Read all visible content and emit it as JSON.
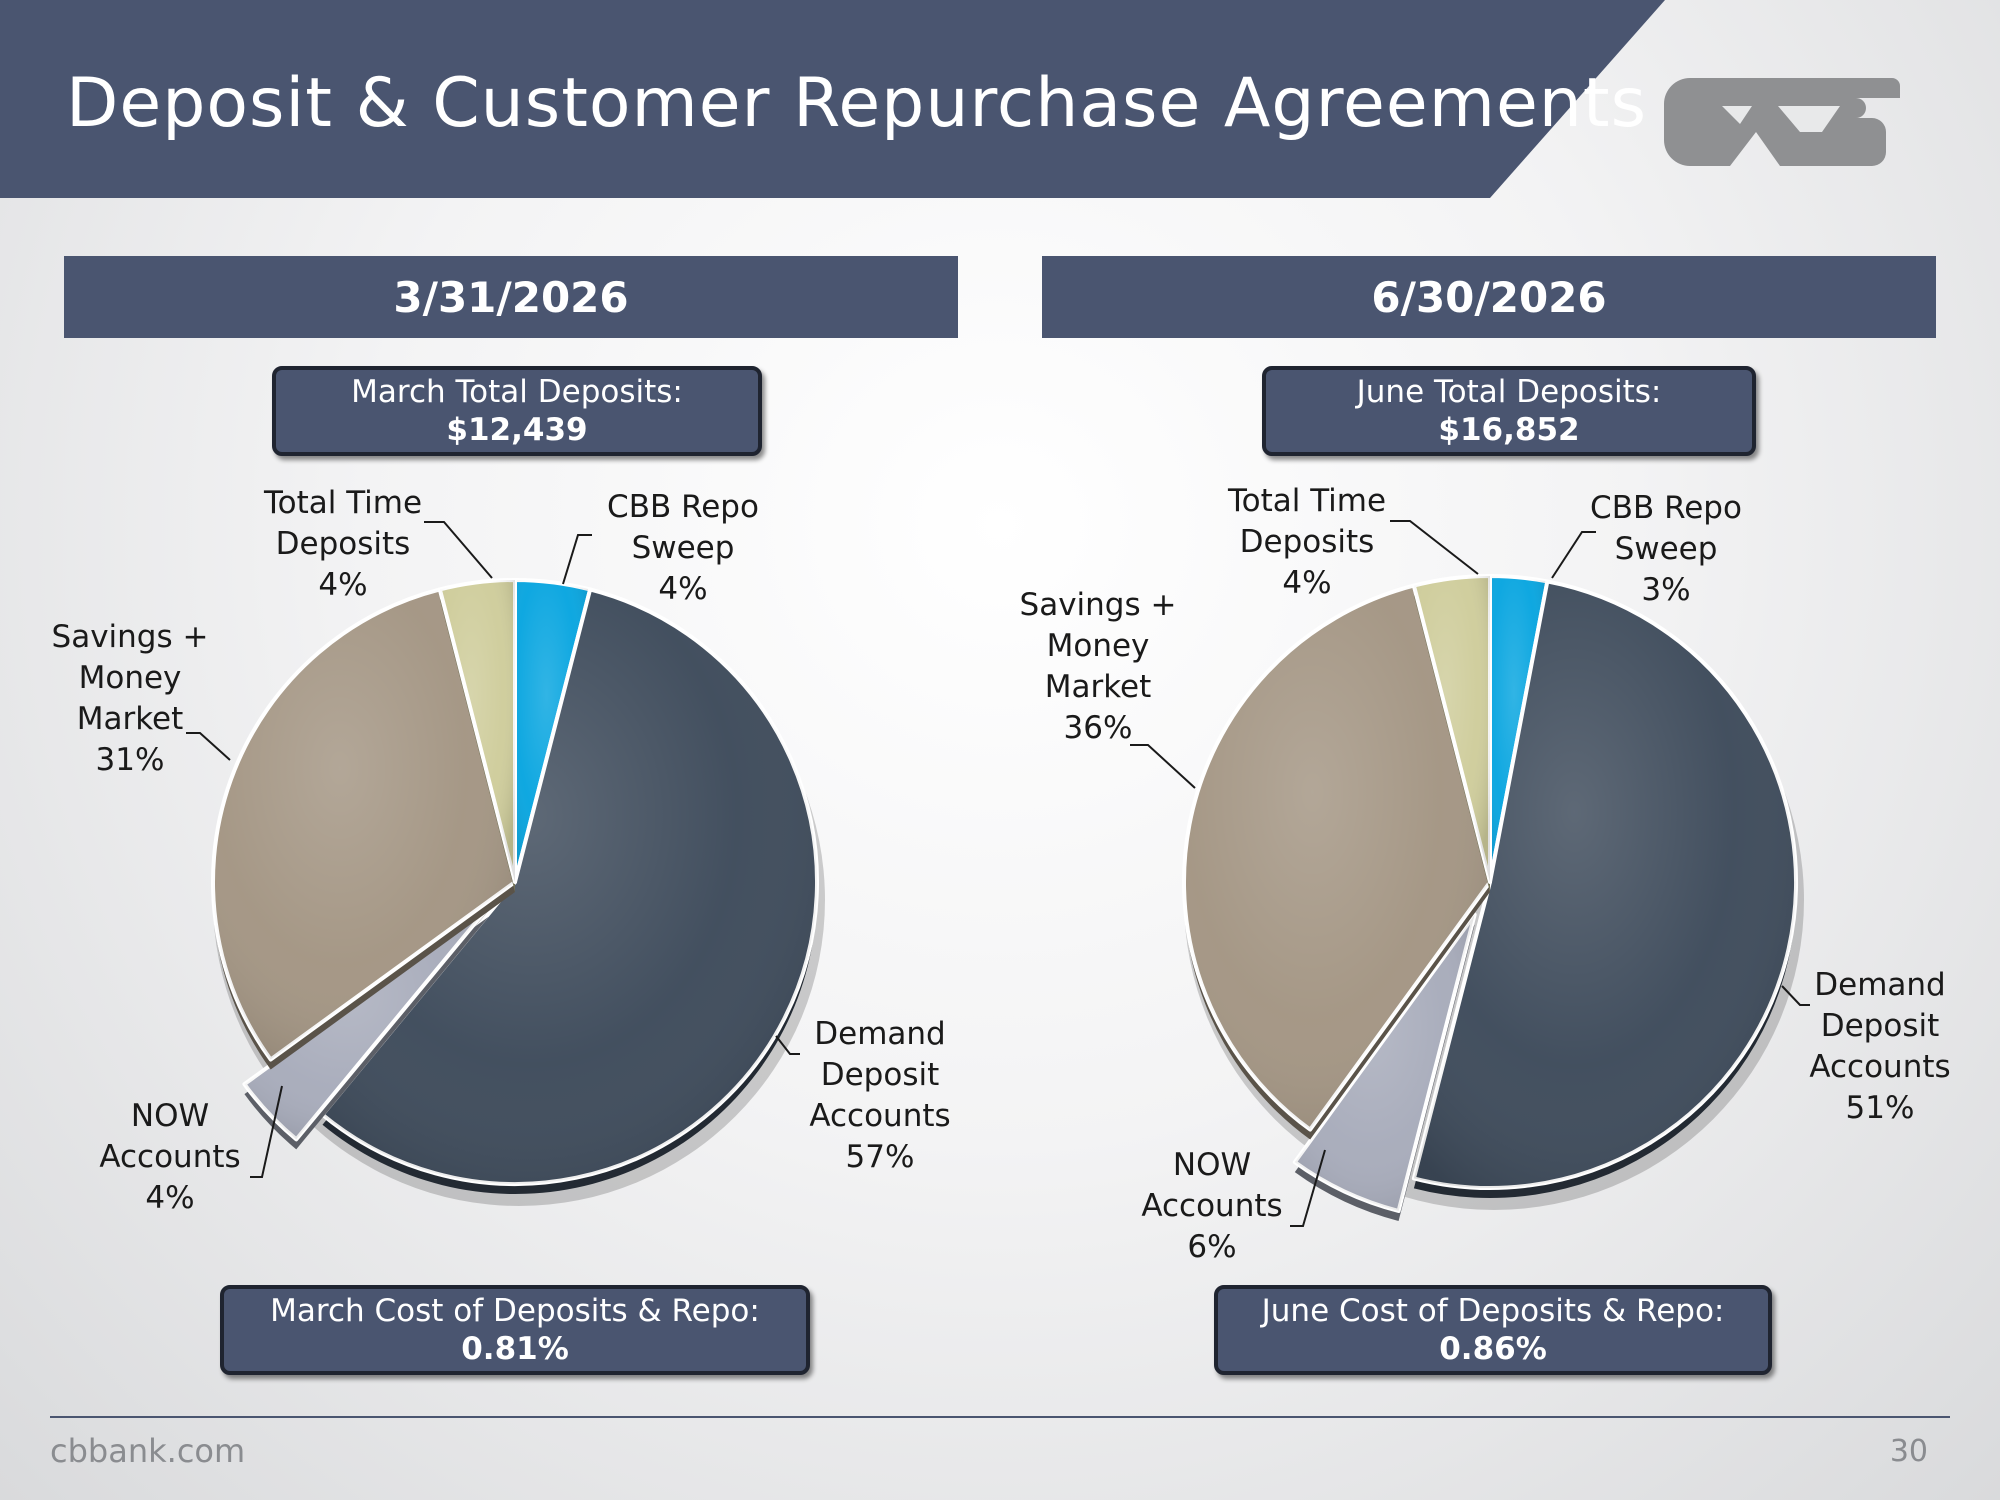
{
  "header": {
    "title": "Deposit & Customer Repurchase Agreements"
  },
  "colors": {
    "header_band": "#4a5570",
    "demand": "#3f4c5c",
    "now": "#a8acbb",
    "savings": "#a49684",
    "time": "#cfcd9c",
    "repo": "#0aa6e0",
    "logo": "#8f9092"
  },
  "panels": [
    {
      "date": "3/31/2026",
      "total_label": "March Total Deposits:",
      "total_value": "$12,439",
      "cost_label": "March Cost of Deposits & Repo:",
      "cost_value": "0.81%"
    },
    {
      "date": "6/30/2026",
      "total_label": "June Total Deposits:",
      "total_value": "$16,852",
      "cost_label": "June Cost of Deposits & Repo:",
      "cost_value": "0.86%"
    }
  ],
  "chart_data": [
    {
      "type": "pie",
      "title": "3/31/2026",
      "slices": [
        {
          "key": "repo",
          "label": [
            "CBB Repo",
            "Sweep",
            "4%"
          ],
          "value": 4
        },
        {
          "key": "demand",
          "label": [
            "Demand",
            "Deposit",
            "Accounts",
            "57%"
          ],
          "value": 57
        },
        {
          "key": "now",
          "label": [
            "NOW",
            "Accounts",
            "4%"
          ],
          "value": 4,
          "exploded": true
        },
        {
          "key": "savings",
          "label": [
            "Savings +",
            "Money",
            "Market",
            "31%"
          ],
          "value": 31
        },
        {
          "key": "time",
          "label": [
            "Total Time",
            "Deposits",
            "4%"
          ],
          "value": 4
        }
      ]
    },
    {
      "type": "pie",
      "title": "6/30/2026",
      "slices": [
        {
          "key": "repo",
          "label": [
            "CBB Repo",
            "Sweep",
            "3%"
          ],
          "value": 3
        },
        {
          "key": "demand",
          "label": [
            "Demand",
            "Deposit",
            "Accounts",
            "51%"
          ],
          "value": 51
        },
        {
          "key": "now",
          "label": [
            "NOW",
            "Accounts",
            "6%"
          ],
          "value": 6,
          "exploded": true
        },
        {
          "key": "savings",
          "label": [
            "Savings +",
            "Money",
            "Market",
            "36%"
          ],
          "value": 36
        },
        {
          "key": "time",
          "label": [
            "Total Time",
            "Deposits",
            "4%"
          ],
          "value": 4
        }
      ]
    }
  ],
  "footer": {
    "url": "cbbank.com",
    "page": "30"
  }
}
